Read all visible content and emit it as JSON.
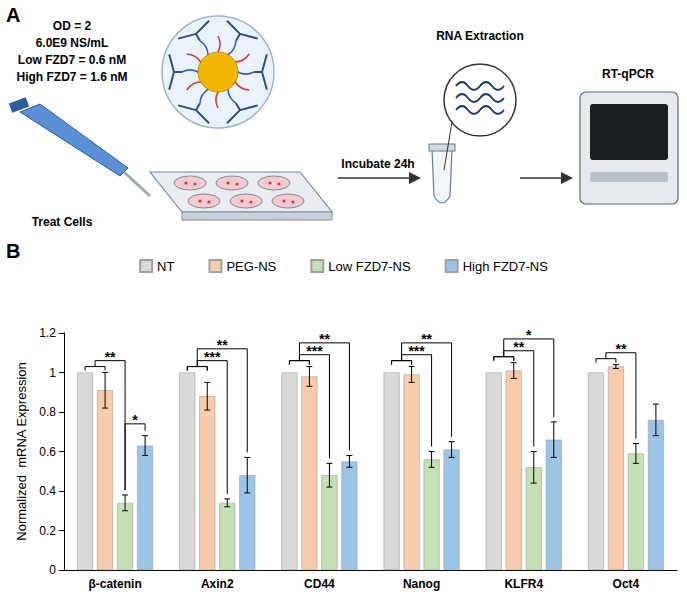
{
  "diagram": {
    "panel_label": "A",
    "conditions": [
      "OD = 2",
      "6.0E9 NS/mL",
      "Low FZD7 = 0.6 nM",
      "High FZD7 = 1.6 nM"
    ],
    "steps": [
      "Treat Cells",
      "Incubate 24h",
      "RNA Extraction",
      "RT-qPCR"
    ]
  },
  "chart_data": {
    "type": "bar",
    "panel_label": "B",
    "y_label": "Normalized  mRNA Expression",
    "categories": [
      "β-catenin",
      "Axin2",
      "CD44",
      "Nanog",
      "KLFR4",
      "Oct4"
    ],
    "series": [
      {
        "name": "NT",
        "color": "#d9d9d9",
        "values": [
          1,
          1,
          1,
          1,
          1,
          1
        ],
        "errors": [
          null,
          null,
          null,
          null,
          null,
          null
        ]
      },
      {
        "name": "PEG-NS",
        "color": "#f8cbad",
        "values": [
          0.91,
          0.88,
          0.98,
          0.99,
          1.01,
          1.03
        ],
        "errors": [
          0.09,
          0.07,
          0.05,
          0.04,
          0.04,
          0.01
        ]
      },
      {
        "name": "Low FZD7-NS",
        "color": "#c5e0b4",
        "values": [
          0.34,
          0.34,
          0.48,
          0.56,
          0.52,
          0.59
        ],
        "errors": [
          0.04,
          0.02,
          0.06,
          0.04,
          0.08,
          0.05
        ]
      },
      {
        "name": "High FZD7-NS",
        "color": "#9dc3e6",
        "values": [
          0.63,
          0.48,
          0.55,
          0.61,
          0.66,
          0.76
        ],
        "errors": [
          0.05,
          0.09,
          0.03,
          0.04,
          0.09,
          0.08
        ]
      }
    ],
    "ylim": [
      0,
      1.2
    ],
    "yticks": [
      0,
      0.2,
      0.4,
      0.6,
      0.8,
      1,
      1.2
    ],
    "grid": false,
    "legend": "top",
    "annotations": [
      {
        "category": "β-catenin",
        "groups": [
          [
            "NT",
            "PEG-NS"
          ],
          [
            "Low FZD7-NS"
          ]
        ],
        "text": "**"
      },
      {
        "category": "β-catenin",
        "groups": [
          [
            "Low FZD7-NS"
          ],
          [
            "High FZD7-NS"
          ]
        ],
        "text": "*"
      },
      {
        "category": "Axin2",
        "groups": [
          [
            "NT",
            "PEG-NS"
          ],
          [
            "Low FZD7-NS"
          ]
        ],
        "text": "***"
      },
      {
        "category": "Axin2",
        "groups": [
          [
            "NT",
            "PEG-NS"
          ],
          [
            "High FZD7-NS"
          ]
        ],
        "text": "**"
      },
      {
        "category": "CD44",
        "groups": [
          [
            "NT",
            "PEG-NS"
          ],
          [
            "Low FZD7-NS"
          ]
        ],
        "text": "***"
      },
      {
        "category": "CD44",
        "groups": [
          [
            "NT",
            "PEG-NS"
          ],
          [
            "High FZD7-NS"
          ]
        ],
        "text": "**"
      },
      {
        "category": "Nanog",
        "groups": [
          [
            "NT",
            "PEG-NS"
          ],
          [
            "Low FZD7-NS"
          ]
        ],
        "text": "***"
      },
      {
        "category": "Nanog",
        "groups": [
          [
            "NT",
            "PEG-NS"
          ],
          [
            "High FZD7-NS"
          ]
        ],
        "text": "**"
      },
      {
        "category": "KLFR4",
        "groups": [
          [
            "NT",
            "PEG-NS"
          ],
          [
            "Low FZD7-NS"
          ]
        ],
        "text": "**"
      },
      {
        "category": "KLFR4",
        "groups": [
          [
            "NT",
            "PEG-NS"
          ],
          [
            "High FZD7-NS"
          ]
        ],
        "text": "*"
      },
      {
        "category": "Oct4",
        "groups": [
          [
            "NT",
            "PEG-NS"
          ],
          [
            "Low FZD7-NS"
          ]
        ],
        "text": "**"
      }
    ]
  }
}
